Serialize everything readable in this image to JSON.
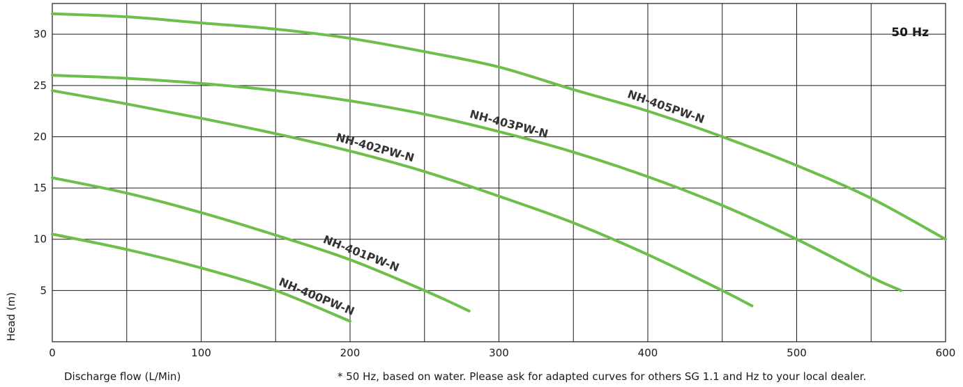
{
  "chart_data": {
    "type": "line",
    "title": "",
    "annotation": "50 Hz",
    "xlabel": "Discharge flow (L/Min)",
    "ylabel": "Head (m)",
    "footnote": "* 50 Hz, based on water. Please ask for adapted curves for others SG 1.1 and Hz to your local dealer.",
    "xlim": [
      0,
      600
    ],
    "ylim": [
      0,
      33
    ],
    "x_ticks": [
      0,
      100,
      200,
      300,
      400,
      500,
      600
    ],
    "y_ticks": [
      5,
      10,
      15,
      20,
      25,
      30
    ],
    "grid": true,
    "line_color": "#6cbf4a",
    "series": [
      {
        "name": "NH-400PW-N",
        "x": [
          0,
          50,
          100,
          150,
          200
        ],
        "y": [
          10.5,
          9.0,
          7.2,
          5.0,
          2.0
        ]
      },
      {
        "name": "NH-401PW-N",
        "x": [
          0,
          50,
          100,
          150,
          200,
          250,
          280
        ],
        "y": [
          16.0,
          14.5,
          12.6,
          10.4,
          8.0,
          5.0,
          3.0
        ]
      },
      {
        "name": "NH-402PW-N",
        "x": [
          0,
          50,
          100,
          150,
          200,
          250,
          300,
          350,
          400,
          450,
          470
        ],
        "y": [
          24.5,
          23.2,
          21.8,
          20.3,
          18.6,
          16.6,
          14.2,
          11.6,
          8.5,
          5.0,
          3.5
        ]
      },
      {
        "name": "NH-403PW-N",
        "x": [
          0,
          50,
          100,
          150,
          200,
          250,
          300,
          350,
          400,
          450,
          500,
          550,
          570
        ],
        "y": [
          26.0,
          25.7,
          25.2,
          24.5,
          23.5,
          22.2,
          20.5,
          18.5,
          16.1,
          13.3,
          10.0,
          6.3,
          5.0
        ]
      },
      {
        "name": "NH-405PW-N",
        "x": [
          0,
          50,
          100,
          150,
          200,
          250,
          300,
          350,
          400,
          450,
          500,
          550,
          600
        ],
        "y": [
          32.0,
          31.7,
          31.1,
          30.5,
          29.6,
          28.3,
          26.8,
          24.6,
          22.5,
          20.0,
          17.2,
          14.0,
          10.0
        ]
      }
    ]
  }
}
